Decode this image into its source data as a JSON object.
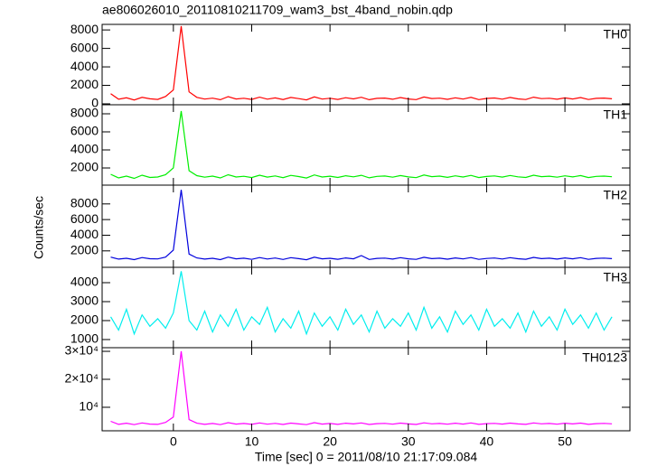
{
  "chart_data": {
    "type": "line",
    "title": "ae806026010_20110810211709_wam3_bst_4band_nobin.qdp",
    "xlabel": "Time [sec] 0 = 2011/08/10 21:17:09.084",
    "ylabel": "Counts/sec",
    "xlim": [
      -9.1,
      58.3
    ],
    "xticks": [
      0,
      10,
      20,
      30,
      40,
      50
    ],
    "x": [
      -8,
      -7,
      -6,
      -5,
      -4,
      -3,
      -2,
      -1,
      0,
      1,
      2,
      3,
      4,
      5,
      6,
      7,
      8,
      9,
      10,
      11,
      12,
      13,
      14,
      15,
      16,
      17,
      18,
      19,
      20,
      21,
      22,
      23,
      24,
      25,
      26,
      27,
      28,
      29,
      30,
      31,
      32,
      33,
      34,
      35,
      36,
      37,
      38,
      39,
      40,
      41,
      42,
      43,
      44,
      45,
      46,
      47,
      48,
      49,
      50,
      51,
      52,
      53,
      54,
      55,
      56
    ],
    "panels": [
      {
        "name": "TH0",
        "color": "#ff0000",
        "ylim": [
          -100,
          8600
        ],
        "yticks": [
          0,
          2000,
          4000,
          6000,
          8000
        ],
        "values": [
          1100,
          500,
          650,
          420,
          700,
          550,
          480,
          800,
          1500,
          8400,
          1300,
          700,
          520,
          610,
          450,
          780,
          530,
          600,
          480,
          720,
          510,
          640,
          470,
          690,
          560,
          430,
          750,
          520,
          600,
          480,
          660,
          540,
          710,
          450,
          590,
          620,
          500,
          680,
          530,
          460,
          740,
          570,
          610,
          490,
          650,
          520,
          700,
          460,
          580,
          630,
          510,
          690,
          540,
          470,
          720,
          560,
          600,
          500,
          640,
          530,
          680,
          470,
          590,
          620,
          550
        ]
      },
      {
        "name": "TH1",
        "color": "#00ee00",
        "ylim": [
          100,
          9000
        ],
        "yticks": [
          2000,
          4000,
          6000,
          8000
        ],
        "values": [
          1300,
          900,
          1100,
          850,
          1200,
          950,
          1000,
          1250,
          2000,
          8300,
          1700,
          1150,
          980,
          1100,
          900,
          1250,
          1000,
          1080,
          940,
          1200,
          990,
          1120,
          930,
          1180,
          1050,
          890,
          1230,
          1000,
          1090,
          950,
          1140,
          1020,
          1190,
          910,
          1070,
          1110,
          980,
          1160,
          1010,
          930,
          1220,
          1040,
          1100,
          960,
          1130,
          1000,
          1180,
          940,
          1060,
          1120,
          990,
          1170,
          1020,
          950,
          1200,
          1040,
          1090,
          980,
          1130,
          1010,
          1160,
          940,
          1070,
          1100,
          1030
        ]
      },
      {
        "name": "TH2",
        "color": "#0000dd",
        "ylim": [
          -100,
          10400
        ],
        "yticks": [
          2000,
          4000,
          6000,
          8000
        ],
        "values": [
          1200,
          950,
          1050,
          880,
          1150,
          1000,
          970,
          1200,
          2100,
          9800,
          1600,
          1100,
          950,
          1050,
          880,
          1200,
          990,
          1060,
          920,
          1150,
          960,
          1090,
          900,
          1130,
          1010,
          870,
          1190,
          980,
          1050,
          930,
          1100,
          990,
          1400,
          900,
          1040,
          1080,
          950,
          1130,
          980,
          910,
          1180,
          1010,
          1070,
          940,
          1100,
          970,
          1150,
          920,
          1030,
          1090,
          960,
          1140,
          1000,
          930,
          1170,
          1010,
          1060,
          950,
          1100,
          990,
          1130,
          920,
          1040,
          1080,
          1010
        ]
      },
      {
        "name": "TH3",
        "color": "#00eeee",
        "ylim": [
          570,
          4810
        ],
        "yticks": [
          1000,
          2000,
          3000,
          4000
        ],
        "values": [
          2200,
          1500,
          2600,
          1300,
          2300,
          1700,
          2100,
          1600,
          2400,
          4600,
          2000,
          1500,
          2500,
          1400,
          2300,
          1700,
          2600,
          1500,
          2200,
          1800,
          2700,
          1400,
          2100,
          1600,
          2500,
          1300,
          2400,
          1700,
          2200,
          1500,
          2600,
          1800,
          2300,
          1400,
          2500,
          1600,
          2100,
          1700,
          2400,
          1500,
          2700,
          1600,
          2200,
          1400,
          2500,
          1800,
          2300,
          1500,
          2600,
          1700,
          2100,
          1600,
          2400,
          1400,
          2500,
          1700,
          2200,
          1500,
          2600,
          1800,
          2300,
          1600,
          2400,
          1500,
          2200
        ]
      },
      {
        "name": "TH0123",
        "color": "#ff00ff",
        "ylim": [
          1600,
          31300
        ],
        "yticks": [
          {
            "value": 10000,
            "label": "10⁴"
          },
          {
            "value": 20000,
            "label": "2×10⁴"
          },
          {
            "value": 30000,
            "label": "3×10⁴"
          }
        ],
        "values": [
          5000,
          3900,
          4300,
          3800,
          4400,
          4000,
          3900,
          4600,
          6500,
          30000,
          5600,
          4300,
          3900,
          4200,
          3800,
          4500,
          4000,
          4200,
          3900,
          4400,
          3950,
          4250,
          3850,
          4350,
          4050,
          3800,
          4500,
          4000,
          4200,
          3900,
          4300,
          4050,
          4400,
          3850,
          4150,
          4250,
          3950,
          4350,
          4050,
          3850,
          4450,
          4100,
          4200,
          3950,
          4300,
          4000,
          4400,
          3900,
          4150,
          4250,
          4000,
          4350,
          4050,
          3900,
          4400,
          4100,
          4200,
          3950,
          4300,
          4050,
          4350,
          3900,
          4150,
          4250,
          4100
        ]
      }
    ]
  }
}
